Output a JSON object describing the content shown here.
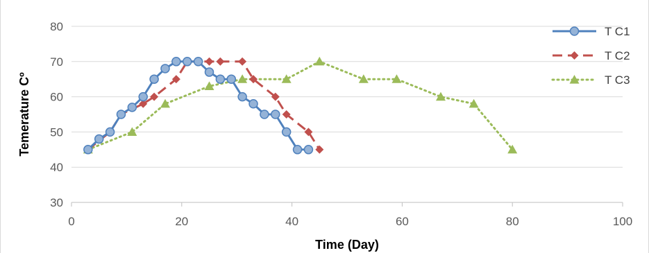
{
  "chart_data": {
    "type": "line",
    "title": "",
    "xlabel": "Time (Day)",
    "ylabel": "Temerature Cº",
    "xlim": [
      0,
      100
    ],
    "ylim": [
      30,
      80
    ],
    "xticks": [
      0,
      20,
      40,
      60,
      80,
      100
    ],
    "yticks": [
      30,
      40,
      50,
      60,
      70,
      80
    ],
    "grid": "horizontal major gridlines",
    "legend_position": "top-right",
    "series": [
      {
        "name": "T C1",
        "color": "#4f81bd",
        "line_style": "solid",
        "marker": "circle",
        "x": [
          3,
          5,
          7,
          9,
          11,
          13,
          15,
          17,
          19,
          21,
          23,
          25,
          27,
          29,
          31,
          33,
          35,
          37,
          39,
          41,
          43
        ],
        "y": [
          45,
          48,
          50,
          55,
          57,
          60,
          65,
          68,
          70,
          70,
          70,
          67,
          65,
          65,
          60,
          58,
          55,
          55,
          50,
          45,
          45
        ]
      },
      {
        "name": "T C2",
        "color": "#c0504d",
        "line_style": "dashed",
        "marker": "diamond",
        "x": [
          3,
          7,
          9,
          13,
          15,
          19,
          21,
          25,
          27,
          31,
          33,
          37,
          39,
          43,
          45
        ],
        "y": [
          45,
          50,
          55,
          58,
          60,
          65,
          70,
          70,
          70,
          70,
          65,
          60,
          55,
          50,
          45
        ]
      },
      {
        "name": "T C3",
        "color": "#9bbb59",
        "line_style": "dotted",
        "marker": "triangle",
        "x": [
          3,
          11,
          17,
          25,
          31,
          39,
          45,
          53,
          59,
          67,
          73,
          80
        ],
        "y": [
          45,
          50,
          58,
          63,
          65,
          65,
          70,
          65,
          65,
          60,
          58,
          45
        ]
      }
    ]
  }
}
